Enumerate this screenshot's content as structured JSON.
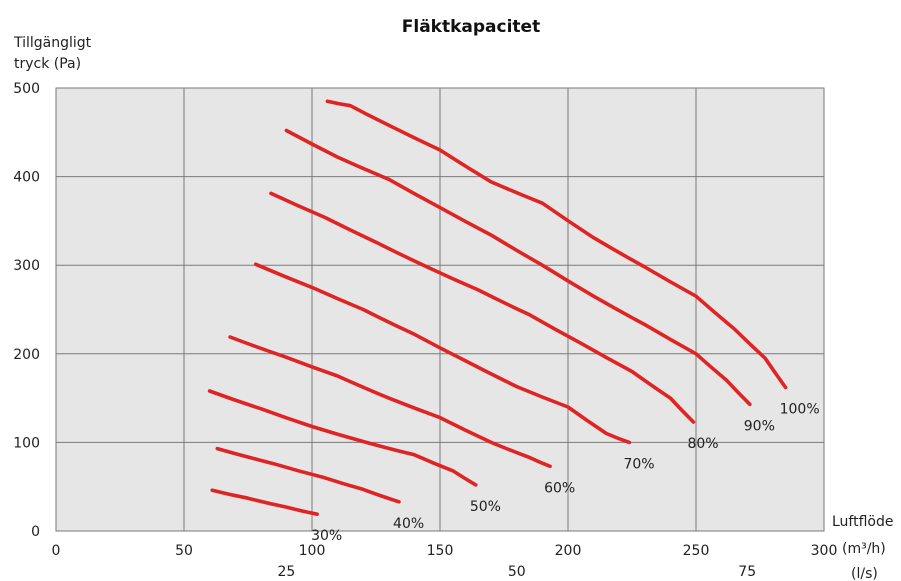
{
  "chart_data": {
    "type": "line",
    "title": "Fläktkapacitet",
    "ylabel_line1": "Tillgängligt",
    "ylabel_line2": "tryck (Pa)",
    "xlabel": "Luftflöde",
    "xunit_main": "(m³/h)",
    "xunit_secondary": "(l/s)",
    "xlim": [
      0,
      300
    ],
    "ylim": [
      0,
      500
    ],
    "x_ticks": [
      0,
      50,
      100,
      150,
      200,
      250,
      300
    ],
    "y_ticks": [
      0,
      100,
      200,
      300,
      400,
      500
    ],
    "secondary_x_ticks": [
      {
        "label": "25",
        "at_m3h": 90
      },
      {
        "label": "50",
        "at_m3h": 180
      },
      {
        "label": "75",
        "at_m3h": 270
      }
    ],
    "grid": true,
    "line_color": "#e02424",
    "series": [
      {
        "name": "30%",
        "points": [
          [
            61,
            46
          ],
          [
            75,
            37
          ],
          [
            90,
            27
          ],
          [
            102,
            19
          ]
        ]
      },
      {
        "name": "40%",
        "points": [
          [
            63,
            93
          ],
          [
            85,
            76
          ],
          [
            105,
            60
          ],
          [
            120,
            47
          ],
          [
            134,
            33
          ]
        ]
      },
      {
        "name": "50%",
        "points": [
          [
            60,
            158
          ],
          [
            80,
            138
          ],
          [
            100,
            118
          ],
          [
            120,
            101
          ],
          [
            140,
            86
          ],
          [
            155,
            68
          ],
          [
            164,
            52
          ]
        ]
      },
      {
        "name": "60%",
        "points": [
          [
            68,
            219
          ],
          [
            90,
            196
          ],
          [
            110,
            175
          ],
          [
            130,
            150
          ],
          [
            150,
            128
          ],
          [
            170,
            100
          ],
          [
            185,
            83
          ],
          [
            193,
            73
          ]
        ]
      },
      {
        "name": "70%",
        "points": [
          [
            78,
            301
          ],
          [
            100,
            275
          ],
          [
            120,
            250
          ],
          [
            140,
            222
          ],
          [
            160,
            192
          ],
          [
            180,
            163
          ],
          [
            200,
            140
          ],
          [
            215,
            110
          ],
          [
            224,
            100
          ]
        ]
      },
      {
        "name": "80%",
        "points": [
          [
            84,
            381
          ],
          [
            105,
            354
          ],
          [
            125,
            326
          ],
          [
            145,
            298
          ],
          [
            165,
            272
          ],
          [
            185,
            244
          ],
          [
            205,
            212
          ],
          [
            225,
            180
          ],
          [
            240,
            150
          ],
          [
            249,
            123
          ]
        ]
      },
      {
        "name": "90%",
        "points": [
          [
            90,
            452
          ],
          [
            110,
            422
          ],
          [
            130,
            397
          ],
          [
            150,
            365
          ],
          [
            170,
            334
          ],
          [
            190,
            300
          ],
          [
            210,
            265
          ],
          [
            230,
            233
          ],
          [
            250,
            200
          ],
          [
            262,
            170
          ],
          [
            271,
            143
          ]
        ]
      },
      {
        "name": "100%",
        "points": [
          [
            106,
            485
          ],
          [
            115,
            480
          ],
          [
            130,
            458
          ],
          [
            150,
            430
          ],
          [
            170,
            394
          ],
          [
            190,
            370
          ],
          [
            210,
            331
          ],
          [
            230,
            298
          ],
          [
            250,
            265
          ],
          [
            265,
            228
          ],
          [
            277,
            195
          ],
          [
            285,
            162
          ]
        ]
      }
    ]
  }
}
